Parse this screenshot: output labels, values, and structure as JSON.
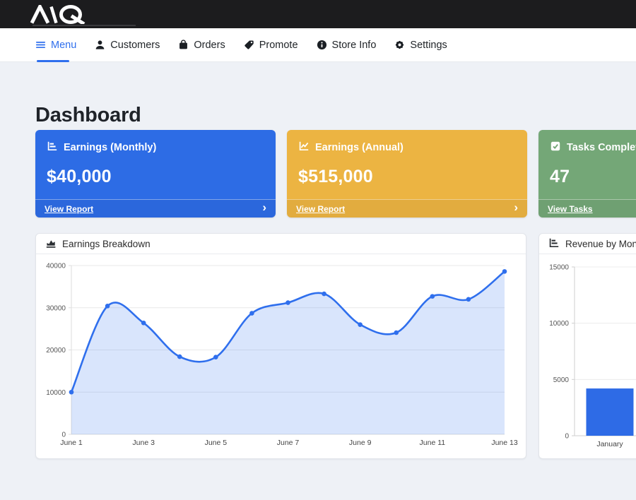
{
  "topbar": {
    "logo": "MQ"
  },
  "nav": {
    "items": [
      {
        "label": "Menu",
        "active": true
      },
      {
        "label": "Customers",
        "active": false
      },
      {
        "label": "Orders",
        "active": false
      },
      {
        "label": "Promote",
        "active": false
      },
      {
        "label": "Store Info",
        "active": false
      },
      {
        "label": "Settings",
        "active": false
      }
    ]
  },
  "page": {
    "title": "Dashboard"
  },
  "stat_cards": [
    {
      "title": "Earnings (Monthly)",
      "value": "$40,000",
      "link_label": "View Report",
      "chevron": "›",
      "color": "#2d6ce5"
    },
    {
      "title": "Earnings (Annual)",
      "value": "$515,000",
      "link_label": "View Report",
      "chevron": "›",
      "color": "#ecb442"
    },
    {
      "title": "Tasks Completed",
      "value": "47",
      "link_label": "View Tasks",
      "chevron": "›",
      "color": "#74a777"
    }
  ],
  "chart_data": [
    {
      "type": "area",
      "title": "Earnings Breakdown",
      "categories": [
        "June 1",
        "June 2",
        "June 3",
        "June 4",
        "June 5",
        "June 6",
        "June 7",
        "June 8",
        "June 9",
        "June 10",
        "June 11",
        "June 12",
        "June 13"
      ],
      "values": [
        10000,
        30400,
        26400,
        18400,
        18300,
        28700,
        31200,
        33300,
        26000,
        24100,
        32700,
        32000,
        38600
      ],
      "x_tick_labels": [
        "June 1",
        "June 3",
        "June 5",
        "June 7",
        "June 9",
        "June 11",
        "June 13"
      ],
      "ylim": [
        0,
        40000
      ],
      "yticks": [
        0,
        10000,
        20000,
        30000,
        40000
      ],
      "line_color": "#2f6fed",
      "fill_color": "rgba(47,111,237,0.18)",
      "grid": true,
      "legend": false
    },
    {
      "type": "bar",
      "title": "Revenue by Month",
      "categories": [
        "January"
      ],
      "values": [
        4200
      ],
      "ylim": [
        0,
        15000
      ],
      "yticks": [
        0,
        5000,
        10000,
        15000
      ],
      "bar_color": "#2e6be6",
      "grid": true,
      "legend": false
    }
  ]
}
